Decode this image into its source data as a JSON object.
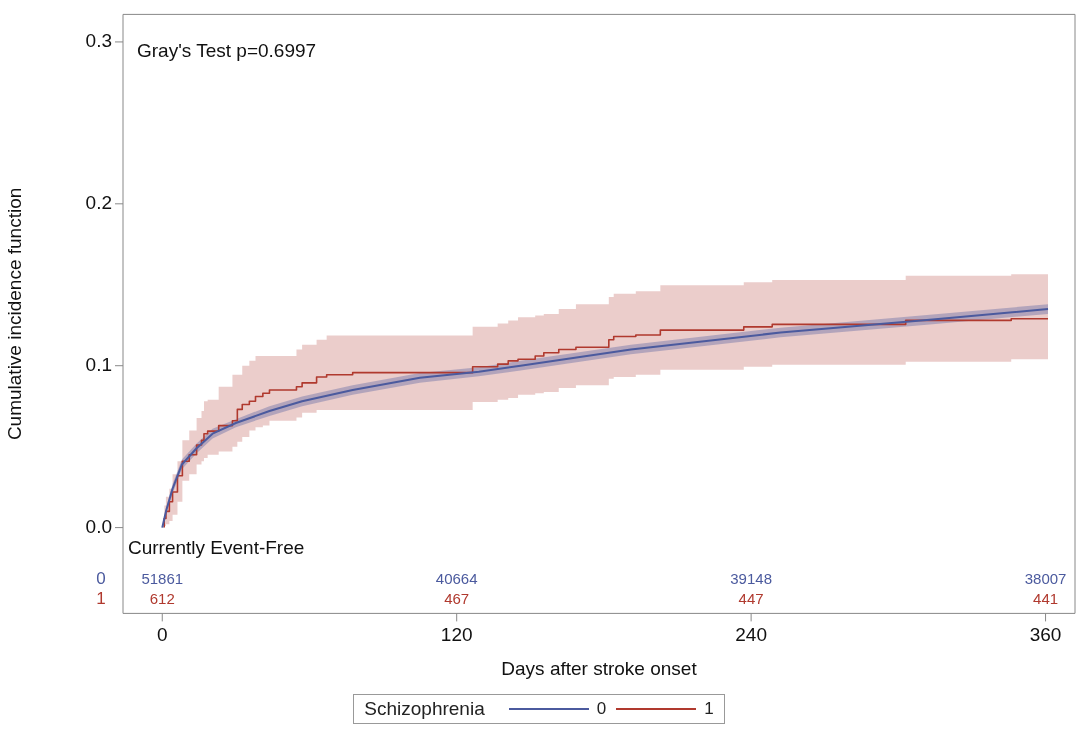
{
  "chart_data": {
    "type": "step",
    "xlabel": "Days after stroke onset",
    "ylabel": "Cumulative incidence function",
    "legend_title": "Schizophrenia",
    "legend": "bottom",
    "grid": false,
    "xlim": [
      -16,
      372
    ],
    "xticks": [
      0,
      120,
      240,
      360
    ],
    "ylim": [
      -0.053,
      0.317
    ],
    "yticks": [
      {
        "value": 0,
        "label": "0.0"
      },
      {
        "value": 0.1,
        "label": "0.1"
      },
      {
        "value": 0.2,
        "label": "0.2"
      },
      {
        "value": 0.3,
        "label": "0.3"
      }
    ],
    "series": [
      {
        "name": "0",
        "color": "#4b5a9e",
        "type": "line",
        "x": [
          0,
          1.5,
          4.2,
          8,
          14,
          20.5,
          30,
          43.7,
          57,
          77.6,
          105,
          129,
          146,
          191,
          252,
          314,
          361
        ],
        "values": [
          0,
          0.01,
          0.024,
          0.039,
          0.049,
          0.058,
          0.0646,
          0.072,
          0.078,
          0.085,
          0.0925,
          0.0963,
          0.1,
          0.11,
          0.1205,
          0.1286,
          0.135
        ],
        "lower": [
          0,
          0.008,
          0.021,
          0.036,
          0.046,
          0.055,
          0.062,
          0.069,
          0.075,
          0.082,
          0.0895,
          0.0935,
          0.097,
          0.107,
          0.1175,
          0.1256,
          0.132
        ],
        "upper": [
          0,
          0.012,
          0.027,
          0.042,
          0.052,
          0.061,
          0.067,
          0.075,
          0.081,
          0.088,
          0.0955,
          0.099,
          0.103,
          0.113,
          0.1235,
          0.1316,
          0.138
        ]
      },
      {
        "name": "1",
        "color": "#b0392e",
        "x": [
          0.8,
          1.5,
          2.9,
          4.2,
          6.2,
          8.2,
          11,
          14,
          16,
          17,
          18.5,
          23,
          28.6,
          30.6,
          32.6,
          35.5,
          38,
          41,
          43.7,
          54.7,
          57,
          62.9,
          67,
          77.6,
          126.5,
          136.7,
          141,
          145,
          152,
          155.5,
          161.6,
          168.6,
          182,
          184,
          193,
          203,
          237,
          248.6,
          303,
          346,
          354,
          361
        ],
        "values": [
          0,
          0.0056,
          0.01,
          0.016,
          0.022,
          0.032,
          0.041,
          0.045,
          0.051,
          0.054,
          0.058,
          0.0596,
          0.063,
          0.066,
          0.073,
          0.076,
          0.078,
          0.081,
          0.083,
          0.085,
          0.087,
          0.0894,
          0.093,
          0.0944,
          0.0957,
          0.0994,
          0.101,
          0.103,
          0.104,
          0.106,
          0.108,
          0.11,
          0.1114,
          0.116,
          0.118,
          0.119,
          0.122,
          0.124,
          0.1255,
          0.128,
          0.129,
          0.129
        ],
        "lower": [
          0,
          0.001,
          0.002,
          0.004,
          0.008,
          0.016,
          0.029,
          0.033,
          0.039,
          0.041,
          0.043,
          0.045,
          0.047,
          0.05,
          0.053,
          0.056,
          0.06,
          0.062,
          0.063,
          0.066,
          0.068,
          0.071,
          0.0727,
          0.0727,
          0.0727,
          0.0776,
          0.079,
          0.08,
          0.082,
          0.083,
          0.0838,
          0.0863,
          0.088,
          0.092,
          0.093,
          0.0944,
          0.0975,
          0.0994,
          0.1006,
          0.1025,
          0.104,
          0.104
        ],
        "upper": [
          0,
          0.0137,
          0.019,
          0.024,
          0.033,
          0.041,
          0.054,
          0.06,
          0.0677,
          0.072,
          0.078,
          0.079,
          0.087,
          0.0944,
          0.0944,
          0.1,
          0.103,
          0.106,
          0.106,
          0.106,
          0.11,
          0.113,
          0.116,
          0.1186,
          0.1186,
          0.124,
          0.126,
          0.128,
          0.13,
          0.131,
          0.132,
          0.135,
          0.138,
          0.1425,
          0.1445,
          0.146,
          0.1497,
          0.1515,
          0.153,
          0.1556,
          0.1565,
          0.1565
        ]
      }
    ],
    "annotations": [
      "Gray's Test p=0.6997",
      "Currently Event-Free",
      "51861",
      "40664",
      "39148",
      "38007",
      "612",
      "467",
      "447",
      "441"
    ]
  }
}
